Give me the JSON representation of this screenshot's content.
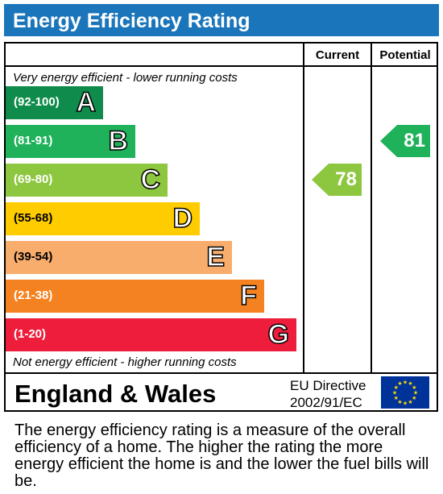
{
  "title": "Energy Efficiency Rating",
  "columns": {
    "current": "Current",
    "potential": "Potential"
  },
  "top_caption": "Very energy efficient - lower running costs",
  "bottom_caption": "Not energy efficient - higher running costs",
  "footer": {
    "country": "England & Wales",
    "directive_line1": "EU Directive",
    "directive_line2": "2002/91/EC"
  },
  "description": "The energy efficiency rating is a measure of the overall efficiency of a home. The higher the rating the more energy efficient the home is and the lower the fuel bills will be.",
  "chart_data": {
    "type": "bar",
    "categories": [
      "A",
      "B",
      "C",
      "D",
      "E",
      "F",
      "G"
    ],
    "bands": [
      {
        "letter": "A",
        "range": "(92-100)",
        "color": "#0f8c4b"
      },
      {
        "letter": "B",
        "range": "(81-91)",
        "color": "#1fb25a"
      },
      {
        "letter": "C",
        "range": "(69-80)",
        "color": "#8dc63f"
      },
      {
        "letter": "D",
        "range": "(55-68)",
        "color": "#ffcc00"
      },
      {
        "letter": "E",
        "range": "(39-54)",
        "color": "#f8ad6d"
      },
      {
        "letter": "F",
        "range": "(21-38)",
        "color": "#f58220"
      },
      {
        "letter": "G",
        "range": "(1-20)",
        "color": "#ee1d3c"
      }
    ],
    "current": {
      "value": 78,
      "band": "C",
      "color": "#8dc63f"
    },
    "potential": {
      "value": 81,
      "band": "B",
      "color": "#1fb25a"
    }
  }
}
